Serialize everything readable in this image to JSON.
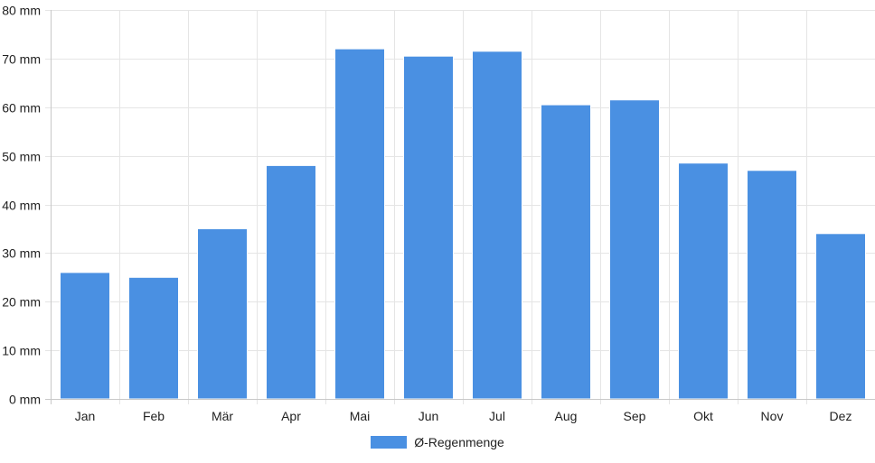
{
  "chart_data": {
    "type": "bar",
    "categories": [
      "Jan",
      "Feb",
      "Mär",
      "Apr",
      "Mai",
      "Jun",
      "Jul",
      "Aug",
      "Sep",
      "Okt",
      "Nov",
      "Dez"
    ],
    "series": [
      {
        "name": "Ø-Regenmenge",
        "values": [
          26,
          25,
          35,
          48,
          72,
          70.5,
          71.5,
          60.5,
          61.5,
          48.5,
          47,
          34
        ],
        "color": "#4a90e2"
      }
    ],
    "ylim": [
      0,
      80
    ],
    "yticks": [
      0,
      10,
      20,
      30,
      40,
      50,
      60,
      70,
      80
    ],
    "ytick_unit": " mm",
    "grid": true,
    "legend_position": "bottom-center"
  },
  "colors": {
    "bar": "#4a90e2",
    "grid": "#e5e5e5",
    "axis": "#c8c8c8"
  },
  "legend": {
    "label": "Ø-Regenmenge"
  }
}
